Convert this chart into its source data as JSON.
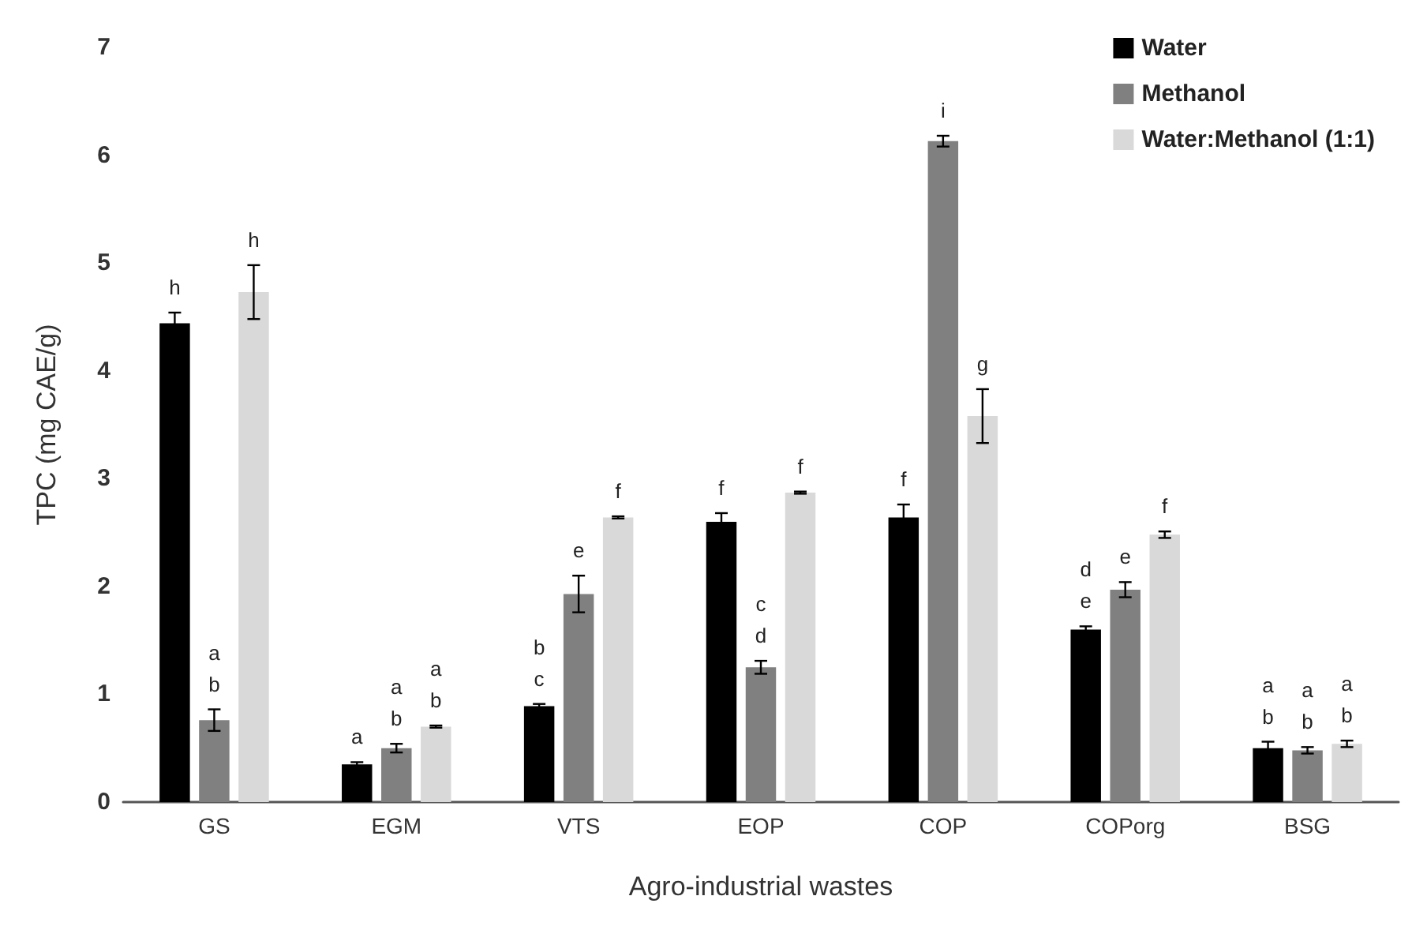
{
  "chart_data": {
    "type": "bar",
    "xlabel": "Agro-industrial wastes",
    "ylabel": "TPC (mg CAE/g)",
    "categories": [
      "GS",
      "EGM",
      "VTS",
      "EOP",
      "COP",
      "COPorg",
      "BSG"
    ],
    "series": [
      {
        "name": "Water",
        "color": "#000000",
        "values": [
          4.44,
          0.35,
          0.89,
          2.6,
          2.64,
          1.6,
          0.5
        ],
        "errors": [
          0.1,
          0.02,
          0.02,
          0.08,
          0.12,
          0.03,
          0.06
        ],
        "value_labels": [
          "h",
          "a",
          "b\nc",
          "f",
          "f",
          "d\ne",
          "a\nb"
        ]
      },
      {
        "name": "Methanol",
        "color": "#808080",
        "values": [
          0.76,
          0.5,
          1.93,
          1.25,
          6.13,
          1.97,
          0.48
        ],
        "errors": [
          0.1,
          0.04,
          0.17,
          0.06,
          0.05,
          0.07,
          0.03
        ],
        "value_labels": [
          "a\nb",
          "a\nb",
          "e",
          "c\nd",
          "i",
          "e",
          "a\nb"
        ]
      },
      {
        "name": "Water:Methanol (1:1)",
        "color": "#d9d9d9",
        "values": [
          4.73,
          0.7,
          2.64,
          2.87,
          3.58,
          2.48,
          0.54
        ],
        "errors": [
          0.25,
          0.01,
          0.01,
          0.01,
          0.25,
          0.03,
          0.03
        ],
        "value_labels": [
          "h",
          "a\nb",
          "f",
          "f",
          "g",
          "f",
          "a\nb"
        ]
      }
    ],
    "ylim": [
      0,
      7
    ],
    "yticks": [
      0,
      1,
      2,
      3,
      4,
      5,
      6,
      7
    ],
    "grid": false,
    "legend": "top right"
  }
}
